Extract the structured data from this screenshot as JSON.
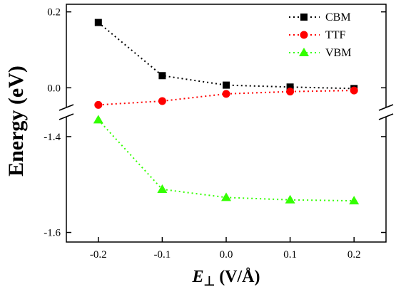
{
  "chart_data": {
    "type": "line",
    "xlabel_symbol": "E",
    "xlabel_sub": "⊥",
    "xlabel_unit": " (V/Å)",
    "ylabel": "Energy (eV)",
    "x": [
      -0.2,
      -0.1,
      0.0,
      0.1,
      0.2
    ],
    "x_tick_labels": [
      "-0.2",
      "-0.1",
      "0.0",
      "0.1",
      "0.2"
    ],
    "xlim": [
      -0.25,
      0.25
    ],
    "y_axis_broken": true,
    "y_segments": [
      {
        "range": [
          -0.05,
          0.22
        ],
        "tick_values": [
          0.0,
          0.2
        ],
        "tick_labels": [
          "0.0",
          "0.2"
        ]
      },
      {
        "range": [
          -1.62,
          -1.36
        ],
        "tick_values": [
          -1.6,
          -1.4
        ],
        "tick_labels": [
          "-1.6",
          "-1.4"
        ]
      }
    ],
    "series": [
      {
        "name": "CBM",
        "segment": 0,
        "color": "#000000",
        "marker": "square",
        "values": [
          0.172,
          0.032,
          0.007,
          0.002,
          -0.002
        ]
      },
      {
        "name": "TTF",
        "segment": 0,
        "color": "#ff0000",
        "marker": "circle",
        "values": [
          -0.045,
          -0.035,
          -0.016,
          -0.01,
          -0.007
        ]
      },
      {
        "name": "VBM",
        "segment": 1,
        "color": "#33ff00",
        "marker": "triangle",
        "values": [
          -1.365,
          -1.51,
          -1.527,
          -1.532,
          -1.534
        ]
      }
    ],
    "legend_position": "top-right",
    "grid": false
  }
}
